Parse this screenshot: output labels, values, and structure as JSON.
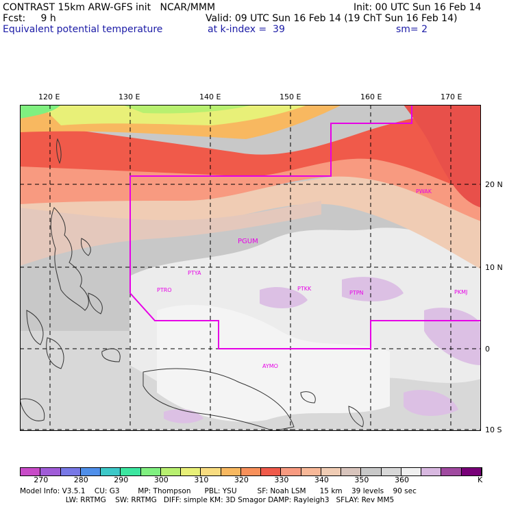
{
  "header": {
    "line1_left": "CONTRAST 15km ARW-GFS init   NCAR/MMM",
    "line1_right": "Init: 00 UTC Sun 16 Feb 14",
    "line2_left": "Fcst:     9 h",
    "line2_right": "Valid: 09 UTC Sun 16 Feb 14 (19 ChT Sun 16 Feb 14)",
    "line3_left": "Equivalent potential temperature",
    "line3_mid": "at k-index =  39",
    "line3_right": "sm= 2"
  },
  "axes": {
    "lon_labels": [
      "120 E",
      "130 E",
      "140 E",
      "150 E",
      "160 E",
      "170 E"
    ],
    "lat_labels": [
      "20 N",
      "10 N",
      "0",
      "10 S"
    ]
  },
  "stations": [
    "PGUM",
    "PWAK",
    "PTYA",
    "PTRO",
    "PTKK",
    "PTPN",
    "PKMJ",
    "AYMO"
  ],
  "colorbar": {
    "colors": [
      "#c84bc8",
      "#a05cd8",
      "#7878e6",
      "#4f8fea",
      "#3cc8c8",
      "#3ce6a0",
      "#80f080",
      "#b8f070",
      "#e8f078",
      "#f8dc80",
      "#f8b860",
      "#f8905a",
      "#f05a4a",
      "#f89a80",
      "#f8b898",
      "#f0ccb4",
      "#d8c4bc",
      "#c8c8c8",
      "#d8d8d8",
      "#f0f0f0",
      "#d8b8e0",
      "#a04aa0",
      "#780078"
    ],
    "labels": [
      "270",
      "280",
      "290",
      "300",
      "310",
      "320",
      "330",
      "340",
      "350",
      "360"
    ],
    "unit": "K"
  },
  "footer": {
    "line1": "Model Info: V3.5.1    CU: G3        MP: Thompson      PBL: YSU         SF: Noah LSM      15 km    39 levels    90 sec",
    "line2": "                    LW: RRTMG    SW: RRTMG   DIFF: simple KM: 3D Smagor DAMP: Rayleigh3   SFLAY: Rev MM5"
  },
  "colors": {
    "domain_outline": "#e600e6",
    "station_label": "#e600e6",
    "header_blue": "#1a1aa6"
  }
}
